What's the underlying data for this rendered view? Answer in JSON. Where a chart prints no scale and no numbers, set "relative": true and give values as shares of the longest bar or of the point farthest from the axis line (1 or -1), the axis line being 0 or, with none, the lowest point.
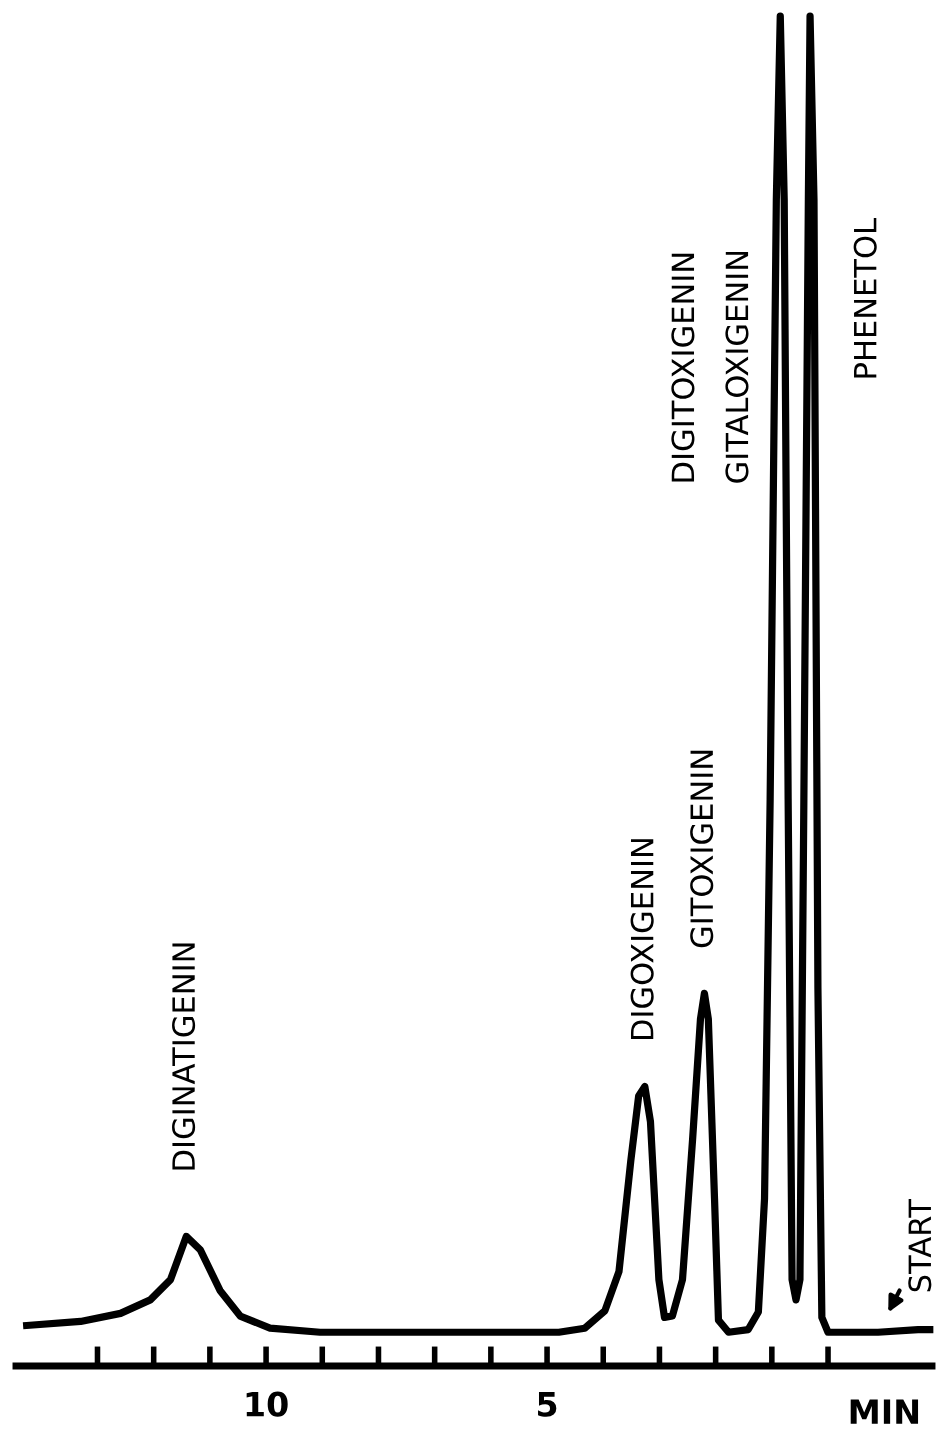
{
  "chart_data": {
    "type": "line",
    "relative": true,
    "xlabel": "MIN",
    "xlim": [
      14.45,
      -1.85
    ],
    "xticks": [
      {
        "value": 13,
        "label": null
      },
      {
        "value": 12,
        "label": null
      },
      {
        "value": 11,
        "label": null
      },
      10,
      {
        "value": 9,
        "label": null
      },
      {
        "value": 8,
        "label": null
      },
      {
        "value": 7,
        "label": null
      },
      {
        "value": 6,
        "label": null
      },
      5,
      {
        "value": 4,
        "label": null
      },
      {
        "value": 3,
        "label": null
      },
      {
        "value": 2,
        "label": null
      },
      {
        "value": 1,
        "label": null
      },
      {
        "value": 0,
        "label": null
      }
    ],
    "grid": false,
    "legend": false,
    "marker": "none",
    "line_style": "solid",
    "series": [
      {
        "color": "#000000",
        "x": [
          14.26,
          13.3,
          12.59,
          12.06,
          11.7,
          11.42,
          11.17,
          10.82,
          10.46,
          9.93,
          9.04,
          7.62,
          4.79,
          4.33,
          3.97,
          3.72,
          3.51,
          3.37,
          3.26,
          3.16,
          3.01,
          2.91,
          2.77,
          2.59,
          2.41,
          2.27,
          2.2,
          2.13,
          2.02,
          1.95,
          1.77,
          1.42,
          1.24,
          1.13,
          1.03,
          0.92,
          0.85,
          0.78,
          0.71,
          0.64,
          0.57,
          0.5,
          0.43,
          0.35,
          0.32,
          0.25,
          0.18,
          0.11,
          0.0,
          -0.89,
          -1.6,
          -1.81
        ],
        "values": [
          0.03,
          0.033,
          0.039,
          0.049,
          0.064,
          0.096,
          0.086,
          0.056,
          0.037,
          0.028,
          0.025,
          0.025,
          0.025,
          0.028,
          0.041,
          0.07,
          0.152,
          0.2,
          0.207,
          0.181,
          0.064,
          0.036,
          0.037,
          0.064,
          0.168,
          0.257,
          0.276,
          0.257,
          0.124,
          0.034,
          0.025,
          0.027,
          0.04,
          0.124,
          0.42,
          0.864,
          1.0,
          0.864,
          0.42,
          0.064,
          0.049,
          0.064,
          0.42,
          0.864,
          1.0,
          0.864,
          0.28,
          0.036,
          0.025,
          0.025,
          0.027,
          0.027
        ]
      }
    ],
    "annotations": [
      {
        "text": "DIGINATIGENIN",
        "x": 11.42,
        "y": 0.096
      },
      {
        "text": "DIGOXIGENIN",
        "x": 3.26,
        "y": 0.207
      },
      {
        "text": "GITOXIGENIN",
        "x": 2.2,
        "y": 0.276
      },
      "DIGITOXIGENIN",
      "GITALOXIGENIN",
      "PHENETOL",
      {
        "text": "START",
        "x": -0.89,
        "y": 0.025
      }
    ]
  }
}
